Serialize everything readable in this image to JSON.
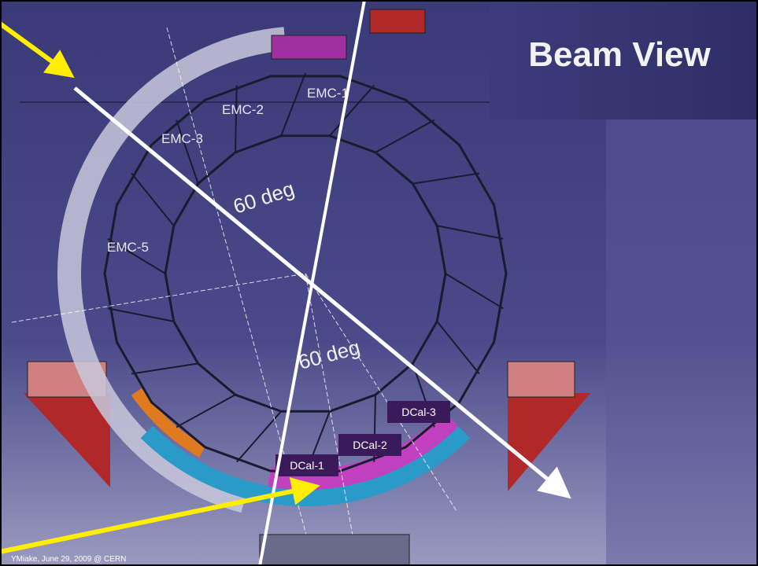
{
  "header": {
    "title": "Beam View"
  },
  "labels": {
    "emc": [
      "EMC-1",
      "EMC-2",
      "EMC-3",
      "EMC-5"
    ],
    "angles": [
      "60 deg",
      "60 deg"
    ],
    "dcal": [
      "DCal-1",
      "DCal-2",
      "DCal-3"
    ]
  },
  "footer": {
    "credit": "YMiake, June 29, 2009 @ CERN"
  }
}
